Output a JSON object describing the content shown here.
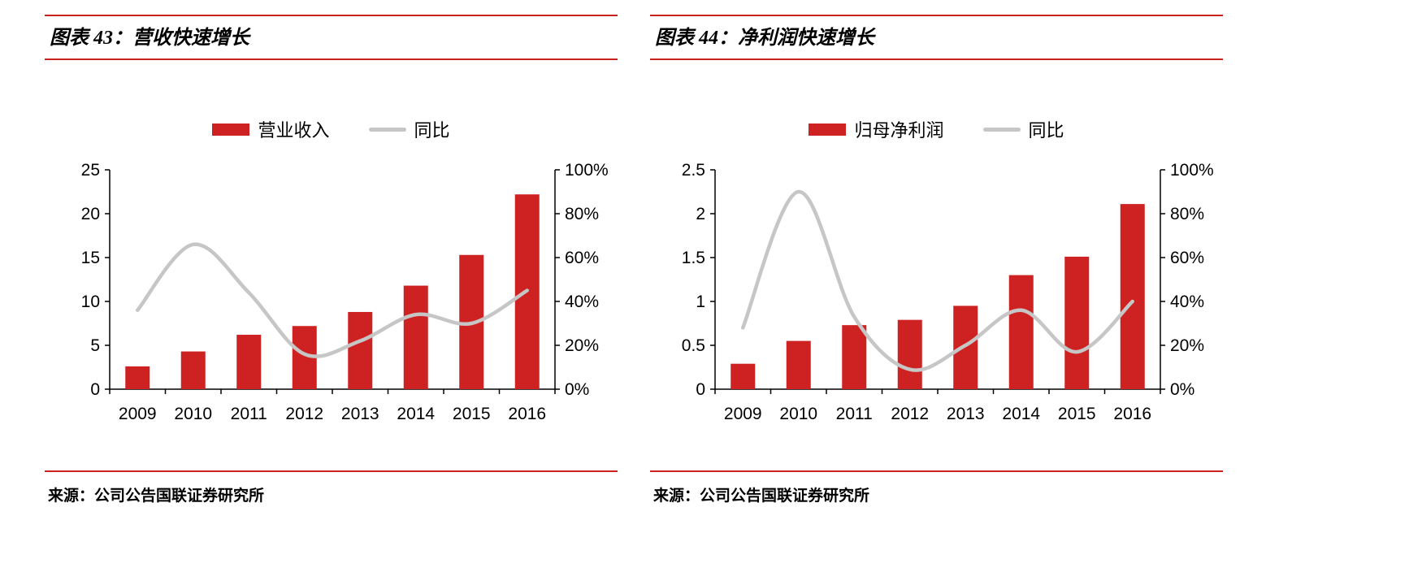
{
  "colors": {
    "rule_red": "#C9211E",
    "bar_red": "#CE2121",
    "line_gray": "#C6C6C6",
    "axis_black": "#000000",
    "background": "#FFFFFF"
  },
  "panels": [
    {
      "source": "来源：公司公告国联证券研究所"
    },
    {
      "source": "来源：公司公告国联证券研究所"
    }
  ],
  "chart_data": [
    {
      "type": "bar",
      "title": "图表 43：营收快速增长",
      "categories": [
        "2009",
        "2010",
        "2011",
        "2012",
        "2013",
        "2014",
        "2015",
        "2016"
      ],
      "series": [
        {
          "name": "营业收入",
          "type": "bar",
          "axis": "left",
          "color": "#CE2121",
          "values": [
            2.6,
            4.3,
            6.2,
            7.2,
            8.8,
            11.8,
            15.3,
            22.2
          ]
        },
        {
          "name": "同比",
          "type": "line",
          "axis": "right",
          "color": "#C6C6C6",
          "values": [
            36,
            66,
            44,
            16,
            22,
            34,
            30,
            45
          ]
        }
      ],
      "left_axis": {
        "min": 0,
        "max": 25,
        "ticks": [
          0,
          5,
          10,
          15,
          20,
          25
        ],
        "labels": [
          "0",
          "5",
          "10",
          "15",
          "20",
          "25"
        ]
      },
      "right_axis": {
        "min": 0,
        "max": 100,
        "ticks": [
          0,
          20,
          40,
          60,
          80,
          100
        ],
        "labels": [
          "0%",
          "20%",
          "40%",
          "60%",
          "80%",
          "100%"
        ]
      },
      "legend_position": "top",
      "grid": false
    },
    {
      "type": "bar",
      "title": "图表 44：净利润快速增长",
      "categories": [
        "2009",
        "2010",
        "2011",
        "2012",
        "2013",
        "2014",
        "2015",
        "2016"
      ],
      "series": [
        {
          "name": "归母净利润",
          "type": "bar",
          "axis": "left",
          "color": "#CE2121",
          "values": [
            0.29,
            0.55,
            0.73,
            0.79,
            0.95,
            1.3,
            1.51,
            2.11
          ]
        },
        {
          "name": "同比",
          "type": "line",
          "axis": "right",
          "color": "#C6C6C6",
          "values": [
            28,
            90,
            33,
            9,
            20,
            36,
            17,
            40
          ]
        }
      ],
      "left_axis": {
        "min": 0,
        "max": 2.5,
        "ticks": [
          0,
          0.5,
          1,
          1.5,
          2,
          2.5
        ],
        "labels": [
          "0",
          "0.5",
          "1",
          "1.5",
          "2",
          "2.5"
        ]
      },
      "right_axis": {
        "min": 0,
        "max": 100,
        "ticks": [
          0,
          20,
          40,
          60,
          80,
          100
        ],
        "labels": [
          "0%",
          "20%",
          "40%",
          "60%",
          "80%",
          "100%"
        ]
      },
      "legend_position": "top",
      "grid": false
    }
  ]
}
